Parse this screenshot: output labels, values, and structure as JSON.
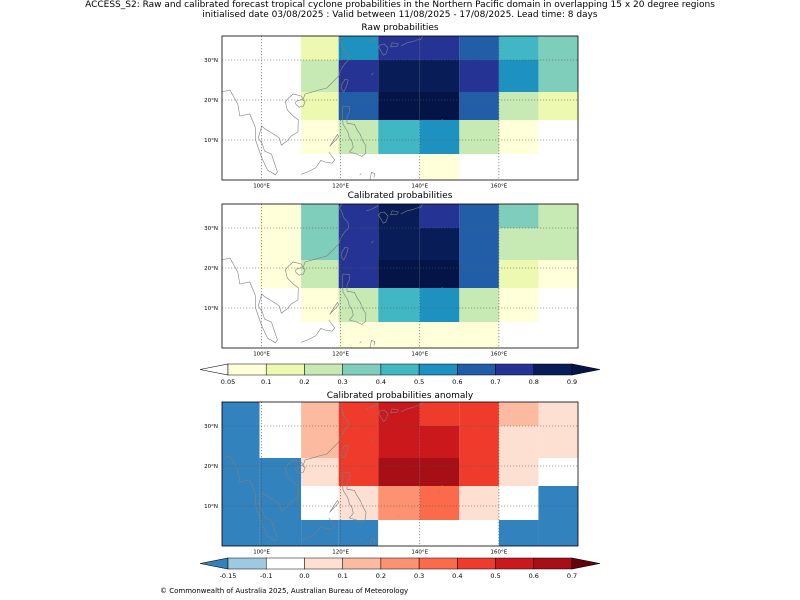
{
  "title_line1": "ACCESS_S2: Raw and calibrated forecast tropical cyclone probabilities in the Northern Pacific domain in overlapping 15 x 20 degree regions",
  "title_line2": "initialised date 03/08/2025 :  Valid between 11/08/2025 - 17/08/2025. Lead time: 8 days",
  "copyright": "© Commonwealth of Australia 2025, Australian Bureau of Meteorology",
  "map_extent": {
    "lon": [
      90,
      180
    ],
    "lat": [
      0,
      36
    ]
  },
  "lon_ticks": [
    100,
    120,
    140,
    160
  ],
  "lon_tick_labels": [
    "100°E",
    "120°E",
    "140°E",
    "160°E"
  ],
  "lat_ticks": [
    10,
    20,
    30
  ],
  "lat_tick_labels": [
    "10°N",
    "20°N",
    "30°N"
  ],
  "lon_edges": [
    90,
    99.5,
    110,
    119.5,
    129.5,
    140,
    150,
    160,
    170,
    180
  ],
  "lat_edges": [
    0,
    6.5,
    15,
    22,
    30,
    36
  ],
  "panels": [
    {
      "title": "Raw probabilities",
      "colorbar": "prob",
      "rows": [
        [
          0,
          0,
          0.15,
          0.55,
          0.75,
          0.75,
          0.6,
          0.45,
          0.35
        ],
        [
          0,
          0,
          0.25,
          0.75,
          0.85,
          0.85,
          0.7,
          0.5,
          0.35
        ],
        [
          0,
          0,
          0.15,
          0.6,
          0.95,
          0.95,
          0.6,
          0.2,
          0.1
        ],
        [
          0,
          0,
          0.05,
          0.2,
          0.4,
          0.5,
          0.2,
          0.05,
          0
        ],
        [
          0,
          0,
          0,
          0,
          0,
          0.05,
          0,
          0,
          0
        ]
      ]
    },
    {
      "title": "Calibrated probabilities",
      "colorbar": "prob",
      "rows": [
        [
          0,
          0.05,
          0.3,
          0.7,
          0.85,
          0.75,
          0.6,
          0.35,
          0.2
        ],
        [
          0,
          0.05,
          0.3,
          0.7,
          0.85,
          0.85,
          0.6,
          0.2,
          0.2
        ],
        [
          0,
          0.05,
          0.2,
          0.7,
          0.95,
          0.95,
          0.6,
          0.1,
          0.05
        ],
        [
          0,
          0,
          0.05,
          0.2,
          0.45,
          0.55,
          0.2,
          0.05,
          0
        ],
        [
          0,
          0,
          0,
          0.05,
          0.05,
          0.05,
          0.05,
          0,
          0
        ]
      ]
    },
    {
      "title": "Calibrated probabilities anomaly",
      "colorbar": "anom",
      "rows": [
        [
          -0.2,
          -0.1,
          0.15,
          0.45,
          0.55,
          0.45,
          0.4,
          0.15,
          0.05
        ],
        [
          -0.2,
          -0.1,
          0.15,
          0.45,
          0.55,
          0.55,
          0.4,
          0.05,
          0.05
        ],
        [
          -0.2,
          -0.2,
          0.05,
          0.45,
          0.65,
          0.65,
          0.4,
          0,
          -0.1
        ],
        [
          -0.2,
          -0.2,
          -0.1,
          0.05,
          0.25,
          0.35,
          0.05,
          -0.1,
          -0.2
        ],
        [
          -0.2,
          -0.2,
          -0.2,
          -0.2,
          -0.1,
          -0.1,
          -0.1,
          -0.2,
          -0.2
        ]
      ]
    }
  ],
  "colorbars": {
    "prob": {
      "ticks": [
        "0.05",
        "0.1",
        "0.2",
        "0.3",
        "0.4",
        "0.5",
        "0.6",
        "0.7",
        "0.8",
        "0.9"
      ],
      "colors": [
        "#ffffd9",
        "#edf8b1",
        "#c7e9b4",
        "#7fcdbb",
        "#41b6c4",
        "#1d91c0",
        "#225ea8",
        "#253494",
        "#081d58"
      ],
      "under": "#ffffff",
      "over": "#041447"
    },
    "anom": {
      "ticks": [
        "-0.15",
        "-0.1",
        "0.0",
        "0.1",
        "0.2",
        "0.3",
        "0.4",
        "0.5",
        "0.6",
        "0.7"
      ],
      "colors": [
        "#9ecae1",
        "#ffffff",
        "#fee0d2",
        "#fcbba1",
        "#fc9272",
        "#fb6a4a",
        "#ef3b2c",
        "#cb181d",
        "#a50f15"
      ],
      "under": "#3182bd",
      "over": "#67000d"
    }
  }
}
